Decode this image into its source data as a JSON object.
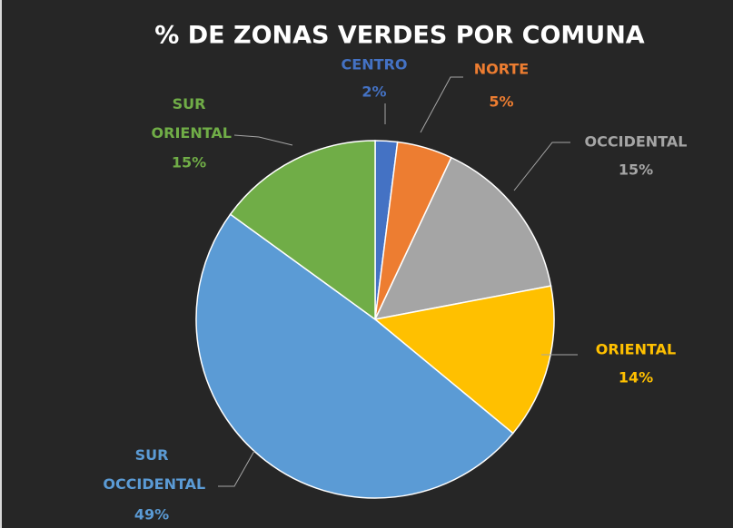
{
  "chart_data": {
    "type": "pie",
    "title": "% DE ZONAS VERDES POR COMUNA",
    "categories": [
      "CENTRO",
      "NORTE",
      "OCCIDENTAL",
      "ORIENTAL",
      "SUR OCCIDENTAL",
      "SUR ORIENTAL"
    ],
    "values": [
      2,
      5,
      15,
      14,
      49,
      15
    ],
    "value_labels": [
      "2%",
      "5%",
      "15%",
      "14%",
      "49%",
      "15%"
    ],
    "colors": [
      "#4472c4",
      "#ed7d31",
      "#a5a5a5",
      "#ffc000",
      "#5b9bd5",
      "#70ad47"
    ]
  }
}
